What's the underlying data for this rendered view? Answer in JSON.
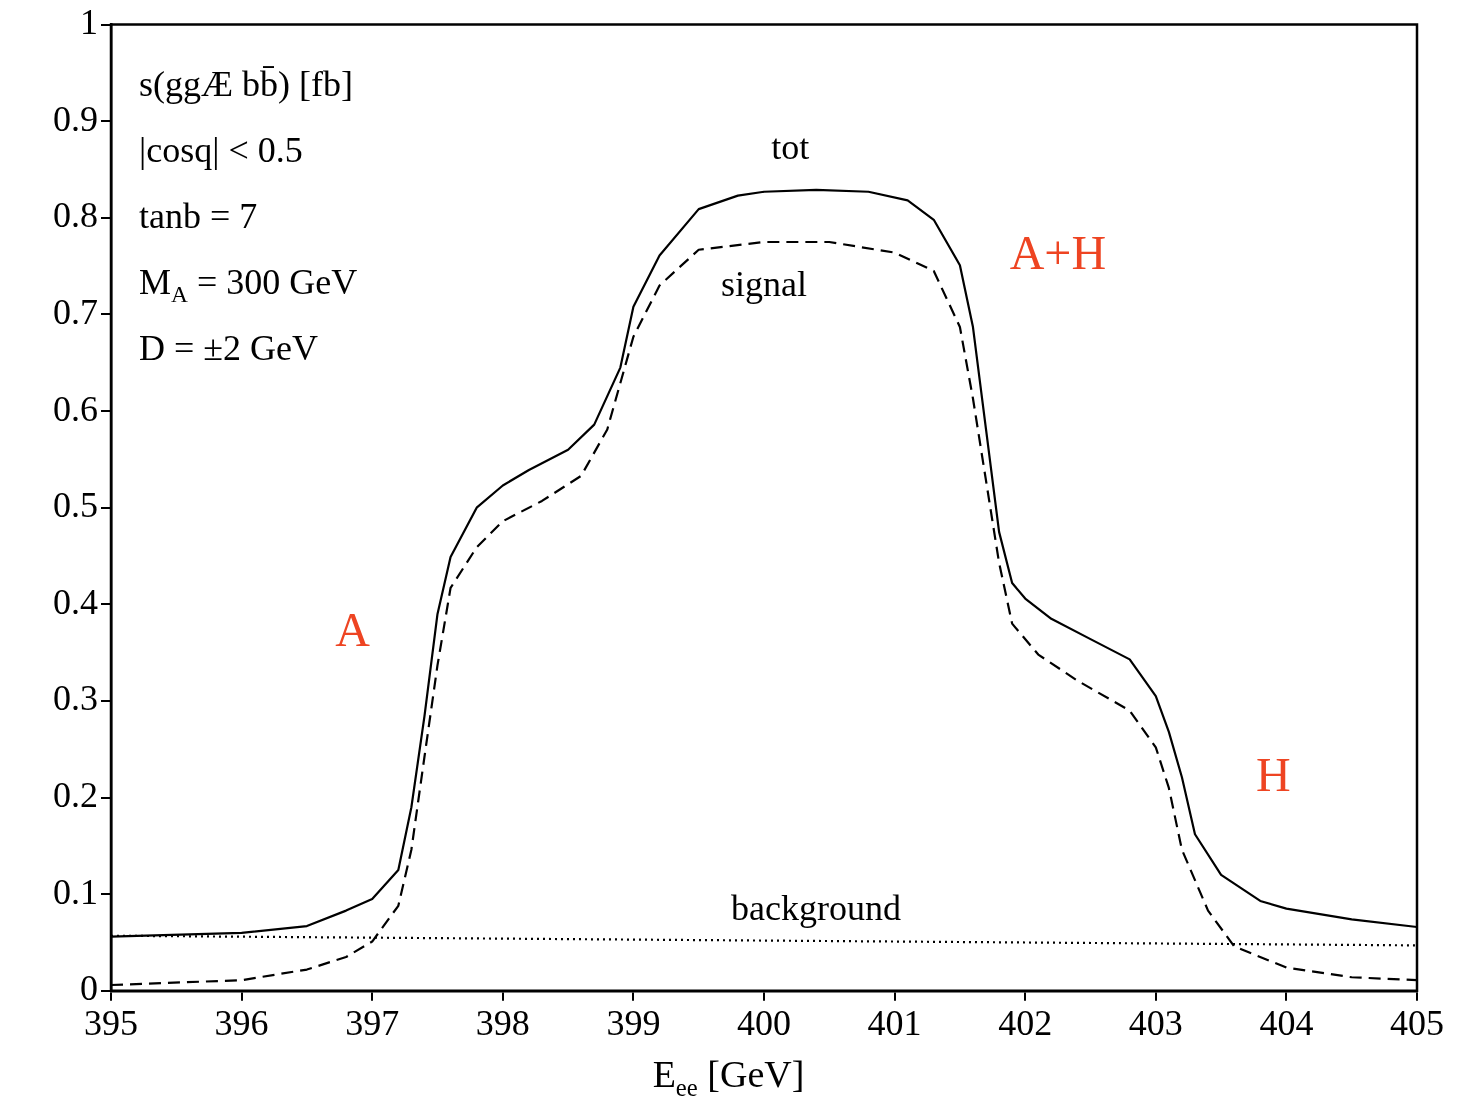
{
  "chart_data": {
    "type": "line",
    "xlabel": "E$_{ee}$ [GeV]",
    "xlim": [
      395,
      405
    ],
    "xticks": [
      395,
      396,
      397,
      398,
      399,
      400,
      401,
      402,
      403,
      404,
      405
    ],
    "ylim": [
      0,
      1
    ],
    "yticks": [
      0,
      0.1,
      0.2,
      0.3,
      0.4,
      0.5,
      0.6,
      0.7,
      0.8,
      0.9,
      1
    ],
    "grid": false,
    "legend": false,
    "marker": "none",
    "series": [
      {
        "name": "tot",
        "color": "#000000",
        "line_style": "solid",
        "x": [
          395,
          396,
          396.5,
          396.8,
          397,
          397.2,
          397.3,
          397.4,
          397.5,
          397.6,
          397.8,
          398,
          398.2,
          398.5,
          398.7,
          398.9,
          399,
          399.2,
          399.5,
          399.8,
          400,
          400.4,
          400.8,
          401.1,
          401.3,
          401.5,
          401.6,
          401.7,
          401.8,
          401.9,
          402,
          402.2,
          402.5,
          402.8,
          403,
          403.1,
          403.2,
          403.3,
          403.5,
          403.8,
          404,
          404.5,
          405
        ],
        "values": [
          0.056,
          0.06,
          0.067,
          0.083,
          0.095,
          0.125,
          0.19,
          0.284,
          0.39,
          0.449,
          0.5,
          0.523,
          0.539,
          0.56,
          0.586,
          0.645,
          0.708,
          0.761,
          0.809,
          0.823,
          0.827,
          0.829,
          0.827,
          0.818,
          0.798,
          0.751,
          0.687,
          0.581,
          0.475,
          0.422,
          0.406,
          0.385,
          0.364,
          0.343,
          0.305,
          0.268,
          0.221,
          0.162,
          0.12,
          0.093,
          0.085,
          0.074,
          0.066
        ]
      },
      {
        "name": "signal",
        "color": "#000000",
        "line_style": "dashed",
        "x": [
          395,
          396,
          396.5,
          396.8,
          397,
          397.2,
          397.3,
          397.4,
          397.5,
          397.6,
          397.8,
          398,
          398.3,
          398.6,
          398.8,
          399,
          399.2,
          399.5,
          400,
          400.5,
          401,
          401.3,
          401.5,
          401.6,
          401.7,
          401.8,
          401.9,
          402.1,
          402.4,
          402.8,
          403,
          403.1,
          403.2,
          403.4,
          403.6,
          404,
          404.5,
          405
        ],
        "values": [
          0.006,
          0.011,
          0.022,
          0.035,
          0.051,
          0.088,
          0.146,
          0.242,
          0.337,
          0.417,
          0.459,
          0.486,
          0.507,
          0.533,
          0.581,
          0.677,
          0.73,
          0.767,
          0.775,
          0.775,
          0.764,
          0.745,
          0.687,
          0.613,
          0.528,
          0.443,
          0.38,
          0.348,
          0.321,
          0.29,
          0.252,
          0.21,
          0.146,
          0.083,
          0.046,
          0.024,
          0.014,
          0.011
        ]
      },
      {
        "name": "background",
        "color": "#000000",
        "line_style": "dotted",
        "x": [
          395,
          400,
          405
        ],
        "values": [
          0.057,
          0.052,
          0.047
        ]
      }
    ],
    "annotations": [
      "s(ggÆ bb̄) [fb]",
      "|cosq| < 0.5",
      "tanb = 7",
      "M$_{A}$ = 300 GeV",
      "D = ±2 GeV",
      "A",
      "A+H",
      "H"
    ]
  }
}
